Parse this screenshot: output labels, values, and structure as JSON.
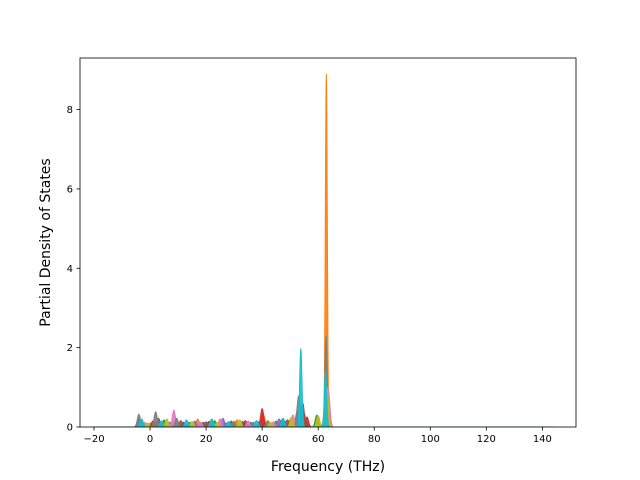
{
  "chart_data": {
    "type": "area",
    "title": "",
    "xlabel": "Frequency (THz)",
    "ylabel": "Partial Density of States",
    "xlim": [
      -25,
      152
    ],
    "ylim": [
      0,
      9.3
    ],
    "xticks": [
      -20,
      0,
      20,
      40,
      60,
      80,
      100,
      120,
      140
    ],
    "yticks": [
      0,
      2,
      4,
      6,
      8
    ],
    "x_range": [
      -20,
      145
    ],
    "grid": false,
    "legend": "none",
    "series": [
      {
        "color": "#1f77b4",
        "peaks": [
          [
            -3.5,
            0.15
          ],
          [
            2,
            0.12
          ],
          [
            10,
            0.1
          ],
          [
            19,
            0.12
          ],
          [
            27,
            0.1
          ],
          [
            33,
            0.14
          ],
          [
            41,
            0.12
          ],
          [
            47,
            0.18
          ],
          [
            53.5,
            0.6
          ],
          [
            62.8,
            1.9
          ]
        ]
      },
      {
        "color": "#ff7f0e",
        "peaks": [
          [
            0,
            0.1
          ],
          [
            9,
            0.15
          ],
          [
            17,
            0.2
          ],
          [
            31,
            0.18
          ],
          [
            40.5,
            0.3
          ],
          [
            50,
            0.2
          ],
          [
            55,
            0.35
          ],
          [
            62.9,
            8.9
          ]
        ]
      },
      {
        "color": "#2ca02c",
        "peaks": [
          [
            -3,
            0.12
          ],
          [
            5,
            0.18
          ],
          [
            14,
            0.12
          ],
          [
            23,
            0.16
          ],
          [
            36,
            0.12
          ],
          [
            45,
            0.15
          ],
          [
            53,
            0.3
          ],
          [
            59.5,
            0.3
          ],
          [
            63,
            0.5
          ]
        ]
      },
      {
        "color": "#d62728",
        "peaks": [
          [
            1,
            0.15
          ],
          [
            12,
            0.12
          ],
          [
            21,
            0.14
          ],
          [
            34,
            0.16
          ],
          [
            40,
            0.46
          ],
          [
            48,
            0.15
          ],
          [
            56,
            0.25
          ],
          [
            63.2,
            0.7
          ]
        ]
      },
      {
        "color": "#9467bd",
        "peaks": [
          [
            -4,
            0.2
          ],
          [
            7,
            0.12
          ],
          [
            16,
            0.15
          ],
          [
            26,
            0.22
          ],
          [
            37,
            0.12
          ],
          [
            46,
            0.2
          ],
          [
            52.5,
            0.4
          ],
          [
            63.4,
            0.6
          ]
        ]
      },
      {
        "color": "#8c564b",
        "peaks": [
          [
            3,
            0.22
          ],
          [
            11,
            0.16
          ],
          [
            20,
            0.13
          ],
          [
            29,
            0.15
          ],
          [
            39,
            0.14
          ],
          [
            49,
            0.18
          ],
          [
            54.5,
            0.6
          ],
          [
            62.7,
            0.8
          ]
        ]
      },
      {
        "color": "#e377c2",
        "peaks": [
          [
            -2,
            0.12
          ],
          [
            8.5,
            0.42
          ],
          [
            18,
            0.12
          ],
          [
            25,
            0.2
          ],
          [
            35,
            0.15
          ],
          [
            44,
            0.13
          ],
          [
            51,
            0.3
          ],
          [
            63.6,
            0.95
          ]
        ]
      },
      {
        "color": "#7f7f7f",
        "peaks": [
          [
            -4,
            0.32
          ],
          [
            2,
            0.38
          ],
          [
            9.5,
            0.22
          ],
          [
            22,
            0.18
          ],
          [
            30,
            0.14
          ],
          [
            42,
            0.16
          ],
          [
            53,
            0.78
          ],
          [
            62.8,
            2.3
          ]
        ]
      },
      {
        "color": "#bcbd22",
        "peaks": [
          [
            -1,
            0.1
          ],
          [
            6,
            0.2
          ],
          [
            15,
            0.14
          ],
          [
            24,
            0.12
          ],
          [
            32,
            0.18
          ],
          [
            43,
            0.12
          ],
          [
            50.5,
            0.25
          ],
          [
            60,
            0.28
          ],
          [
            63.1,
            1.0
          ]
        ]
      },
      {
        "color": "#17becf",
        "peaks": [
          [
            -3,
            0.2
          ],
          [
            4,
            0.15
          ],
          [
            13,
            0.18
          ],
          [
            22,
            0.2
          ],
          [
            28,
            0.14
          ],
          [
            38,
            0.16
          ],
          [
            47.5,
            0.22
          ],
          [
            53.8,
            1.98
          ],
          [
            62.6,
            1.4
          ]
        ]
      }
    ]
  }
}
